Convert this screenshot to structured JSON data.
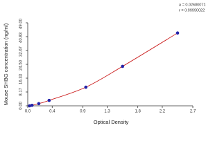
{
  "chart_data": {
    "type": "scatter",
    "xlabel": "Optical Density",
    "ylabel": "Mouse SHBG concentration (ng/ml)",
    "annotations": [
      "a = 0.02680071",
      "r = 0.99990022"
    ],
    "xlim": [
      0,
      2.7
    ],
    "ylim": [
      0,
      49
    ],
    "xticks": [
      {
        "value": 0,
        "label": "0.0"
      },
      0.4,
      0.9,
      1.3,
      1.8,
      2.2,
      2.7
    ],
    "yticks": [
      {
        "value": 0,
        "label": "0.00"
      },
      8.17,
      16.33,
      {
        "value": 24.5,
        "label": "24.50"
      },
      32.67,
      40.83,
      {
        "value": 49,
        "label": "49.00"
      }
    ],
    "line_color": "#cc2222",
    "marker_color": "#2222aa",
    "x": [
      0.03,
      0.07,
      0.18,
      0.35,
      0.95,
      1.55,
      2.45
    ],
    "values": [
      0,
      0.3,
      1.3,
      3.2,
      11,
      23.3,
      43
    ]
  }
}
